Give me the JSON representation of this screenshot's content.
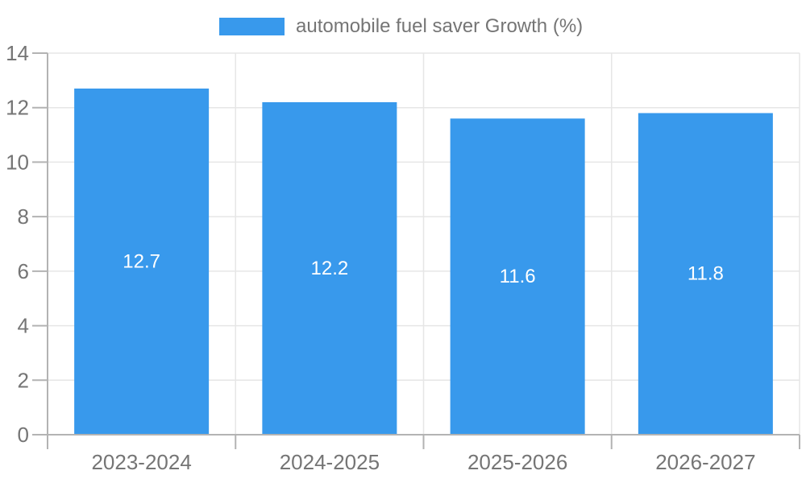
{
  "chart_data": {
    "type": "bar",
    "title": "automobile fuel saver Growth (%)",
    "categories": [
      "2023-2024",
      "2024-2025",
      "2025-2026",
      "2026-2027"
    ],
    "series": [
      {
        "name": "automobile fuel saver Growth (%)",
        "color": "#3899ec",
        "values": [
          12.7,
          12.2,
          11.6,
          11.8
        ]
      }
    ],
    "value_labels": [
      "12.7",
      "12.2",
      "11.6",
      "11.8"
    ],
    "xlabel": "",
    "ylabel": "",
    "ylim": [
      0,
      14
    ],
    "ytick_step": 2,
    "ytick_labels": [
      "0",
      "2",
      "4",
      "6",
      "8",
      "10",
      "12",
      "14"
    ],
    "grid": true,
    "legend_position": "top",
    "colors": {
      "bar": "#3899ec",
      "tick_label_text": "#757575",
      "value_label_text": "#ffffff",
      "grid_line": "#e6e6e6",
      "axis_line": "#b3b3b3"
    }
  }
}
